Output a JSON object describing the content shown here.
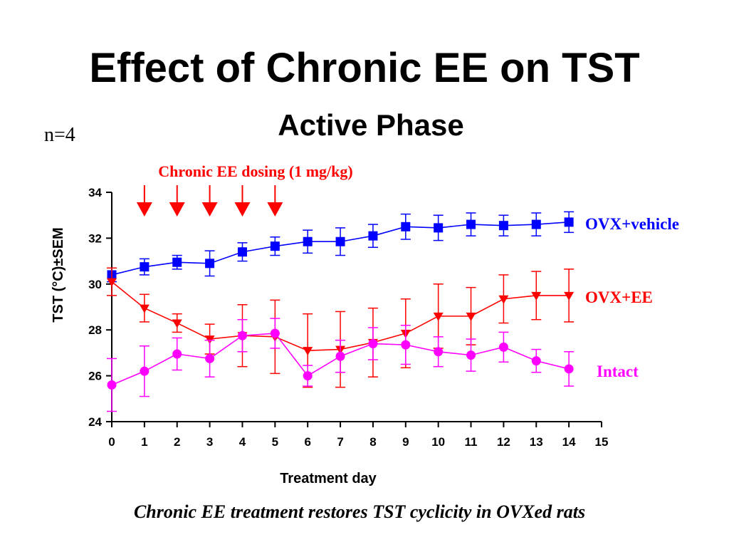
{
  "slide": {
    "title": "Effect of Chronic EE on TST",
    "n_label": "n=4",
    "caption": "Chronic EE treatment restores TST cyclicity in OVXed rats"
  },
  "chart_data": {
    "type": "line",
    "title": "Active Phase",
    "xlabel": "Treatment day",
    "ylabel": "TST (°C)±SEM",
    "xlim": [
      0,
      15
    ],
    "ylim": [
      24,
      34
    ],
    "x_ticks": [
      0,
      1,
      2,
      3,
      4,
      5,
      6,
      7,
      8,
      9,
      10,
      11,
      12,
      13,
      14,
      15
    ],
    "y_ticks": [
      24,
      26,
      28,
      30,
      32,
      34
    ],
    "grid": false,
    "legend": "labels at right end of each line",
    "annotation": {
      "label": "Chronic EE dosing (1 mg/kg)",
      "color": "#ff0000",
      "arrow_days": [
        1,
        2,
        3,
        4,
        5
      ]
    },
    "series": [
      {
        "name": "OVX+vehicle",
        "color": "#0000ff",
        "marker": "square",
        "x": [
          0,
          1,
          2,
          3,
          4,
          5,
          6,
          7,
          8,
          9,
          10,
          11,
          12,
          13,
          14
        ],
        "y": [
          30.4,
          30.75,
          30.95,
          30.9,
          31.4,
          31.65,
          31.85,
          31.85,
          32.1,
          32.5,
          32.45,
          32.6,
          32.55,
          32.6,
          32.7
        ],
        "err": [
          0.3,
          0.35,
          0.3,
          0.55,
          0.4,
          0.4,
          0.5,
          0.6,
          0.5,
          0.55,
          0.55,
          0.5,
          0.45,
          0.5,
          0.45
        ]
      },
      {
        "name": "OVX+EE",
        "color": "#ff0000",
        "marker": "triangle-down",
        "x": [
          0,
          1,
          2,
          3,
          4,
          5,
          6,
          7,
          8,
          9,
          10,
          11,
          12,
          13,
          14
        ],
        "y": [
          30.1,
          28.95,
          28.3,
          27.6,
          27.75,
          27.7,
          27.1,
          27.15,
          27.45,
          27.85,
          28.6,
          28.6,
          29.35,
          29.5,
          29.5
        ],
        "err": [
          0.6,
          0.6,
          0.4,
          0.65,
          1.35,
          1.6,
          1.6,
          1.65,
          1.5,
          1.5,
          1.4,
          1.25,
          1.05,
          1.05,
          1.15
        ]
      },
      {
        "name": "Intact",
        "color": "#ff00ff",
        "marker": "circle",
        "x": [
          0,
          1,
          2,
          3,
          4,
          5,
          6,
          7,
          8,
          9,
          10,
          11,
          12,
          13,
          14
        ],
        "y": [
          25.6,
          26.2,
          26.95,
          26.75,
          27.75,
          27.85,
          26.0,
          26.85,
          27.4,
          27.35,
          27.05,
          26.9,
          27.25,
          26.65,
          26.3
        ],
        "err": [
          1.15,
          1.1,
          0.7,
          0.8,
          0.7,
          0.65,
          0.45,
          0.7,
          0.7,
          0.85,
          0.65,
          0.7,
          0.65,
          0.5,
          0.75
        ]
      }
    ]
  }
}
